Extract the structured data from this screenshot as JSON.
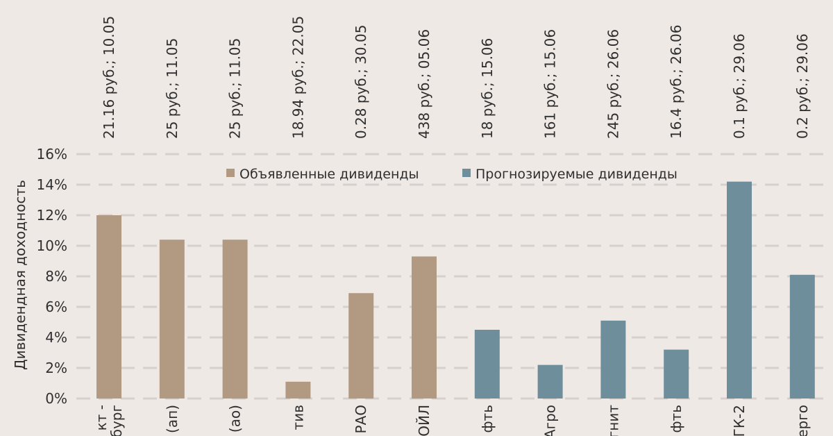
{
  "chart_data": {
    "type": "bar",
    "ylabel": "Дивидендная доходность",
    "ylim": [
      0,
      16
    ],
    "yticks": [
      "0%",
      "2%",
      "4%",
      "6%",
      "8%",
      "10%",
      "12%",
      "14%",
      "16%"
    ],
    "grid": true,
    "legend_position": "top-center",
    "categories": [
      "кт - бург",
      "(ап)",
      "(ао)",
      "тив",
      "РАО",
      "ОЙЛ",
      "фть",
      "Агро",
      "гнит",
      "фть",
      "ГК-2",
      "ерго"
    ],
    "annotations": [
      "21.16 руб.; 10.05",
      "25 руб.; 11.05",
      "25 руб.; 11.05",
      "18.94 руб.; 22.05",
      "0.28 руб.; 30.05",
      "438 руб.; 05.06",
      "18 руб.; 15.06",
      "161 руб.; 15.06",
      "245 руб.; 26.06",
      "16.4 руб.; 26.06",
      "0.1 руб.; 29.06",
      "0.2 руб.; 29.06"
    ],
    "values": [
      12.0,
      10.4,
      10.4,
      1.1,
      6.9,
      9.3,
      4.5,
      2.2,
      5.1,
      3.2,
      14.2,
      8.1
    ],
    "series": [
      {
        "name": "Объявленные дивиденды",
        "color": "#b29a82",
        "indices": [
          0,
          1,
          2,
          3,
          4,
          5
        ]
      },
      {
        "name": "Прогнозируемые дивиденды",
        "color": "#6f8e9b",
        "indices": [
          6,
          7,
          8,
          9,
          10,
          11
        ]
      }
    ]
  }
}
